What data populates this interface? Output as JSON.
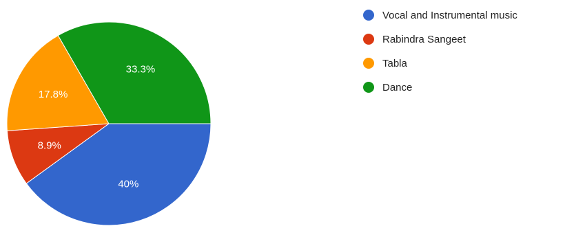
{
  "chart_data": {
    "type": "pie",
    "slices": [
      {
        "name": "Vocal and Instrumental music",
        "value": 40,
        "label": "40%",
        "color": "#3366cc"
      },
      {
        "name": "Rabindra Sangeet",
        "value": 8.9,
        "label": "8.9%",
        "color": "#dc3912"
      },
      {
        "name": "Tabla",
        "value": 17.8,
        "label": "17.8%",
        "color": "#ff9900"
      },
      {
        "name": "Dance",
        "value": 33.3,
        "label": "33.3%",
        "color": "#109618"
      }
    ],
    "legend_position": "right"
  }
}
